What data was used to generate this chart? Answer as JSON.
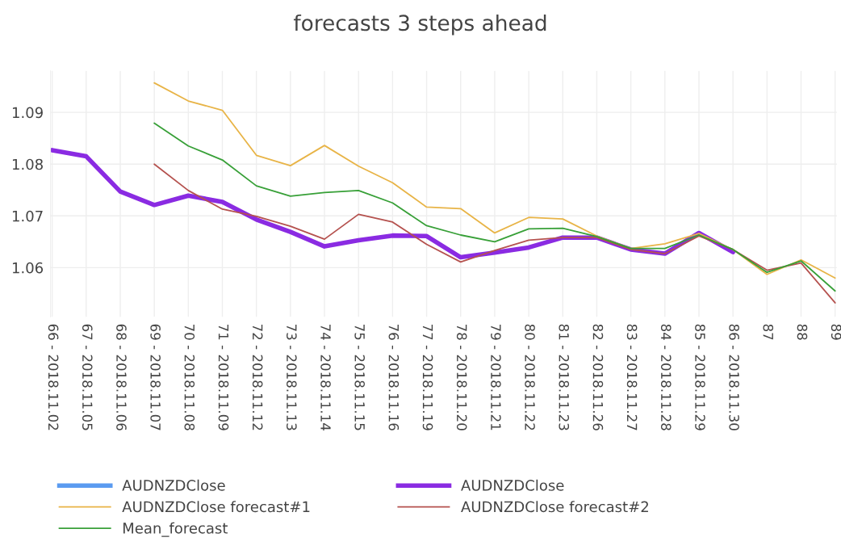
{
  "chart_data": {
    "type": "line",
    "title": "forecasts 3 steps ahead",
    "categories": [
      "66 - 2018.11.02",
      "67 - 2018.11.05",
      "68 - 2018.11.06",
      "69 - 2018.11.07",
      "70 - 2018.11.08",
      "71 - 2018.11.09",
      "72 - 2018.11.12",
      "73 - 2018.11.13",
      "74 - 2018.11.14",
      "75 - 2018.11.15",
      "76 - 2018.11.16",
      "77 - 2018.11.19",
      "78 - 2018.11.20",
      "79 - 2018.11.21",
      "80 - 2018.11.22",
      "81 - 2018.11.23",
      "82 - 2018.11.26",
      "83 - 2018.11.27",
      "84 - 2018.11.28",
      "85 - 2018.11.29",
      "86 - 2018.11.30",
      "87",
      "88",
      "89"
    ],
    "series": [
      {
        "name": "AUDNZDClose",
        "color": "#5b9bf0",
        "values": [
          null,
          null,
          null,
          null,
          null,
          null,
          null,
          null,
          null,
          null,
          null,
          null,
          null,
          null,
          null,
          null,
          null,
          null,
          null,
          null,
          null,
          null,
          null,
          null
        ]
      },
      {
        "name": "AUDNZDClose",
        "color": "#8a2be2",
        "values": [
          1.0827,
          1.0815,
          1.0747,
          1.0721,
          1.0739,
          1.0727,
          1.0693,
          1.0669,
          1.0641,
          1.0653,
          1.0662,
          1.0661,
          1.062,
          1.0629,
          1.0639,
          1.0658,
          1.0658,
          1.0635,
          1.0627,
          1.0667,
          1.063,
          null,
          null,
          null
        ]
      },
      {
        "name": "AUDNZDClose forecast#1",
        "color": "#e8b447",
        "values": [
          null,
          null,
          null,
          1.0957,
          1.0922,
          1.0904,
          1.0817,
          1.0797,
          1.0836,
          1.0796,
          1.0764,
          1.0717,
          1.0714,
          1.0667,
          1.0697,
          1.0694,
          1.0661,
          1.0637,
          1.0646,
          1.0666,
          1.0635,
          1.0587,
          1.0615,
          1.058
        ]
      },
      {
        "name": "AUDNZDClose forecast#2",
        "color": "#b5524f",
        "values": [
          null,
          null,
          null,
          1.08,
          1.0749,
          1.0713,
          1.0699,
          1.068,
          1.0655,
          1.0703,
          1.0688,
          1.0645,
          1.0611,
          1.0633,
          1.0653,
          1.0658,
          1.0658,
          1.0635,
          1.0627,
          1.0661,
          1.0635,
          1.0595,
          1.0609,
          1.0532
        ]
      },
      {
        "name": "Mean_forecast",
        "color": "#38a038",
        "values": [
          null,
          null,
          null,
          1.0879,
          1.0835,
          1.0808,
          1.0758,
          1.0738,
          1.0745,
          1.0749,
          1.0725,
          1.0681,
          1.0663,
          1.065,
          1.0675,
          1.0676,
          1.066,
          1.0637,
          1.0637,
          1.0663,
          1.0635,
          1.0591,
          1.0613,
          1.0555
        ]
      }
    ],
    "ylim": [
      1.0505,
      1.098
    ],
    "yticks": [
      1.06,
      1.07,
      1.08,
      1.09
    ],
    "grid": true,
    "legend": "bottom"
  }
}
